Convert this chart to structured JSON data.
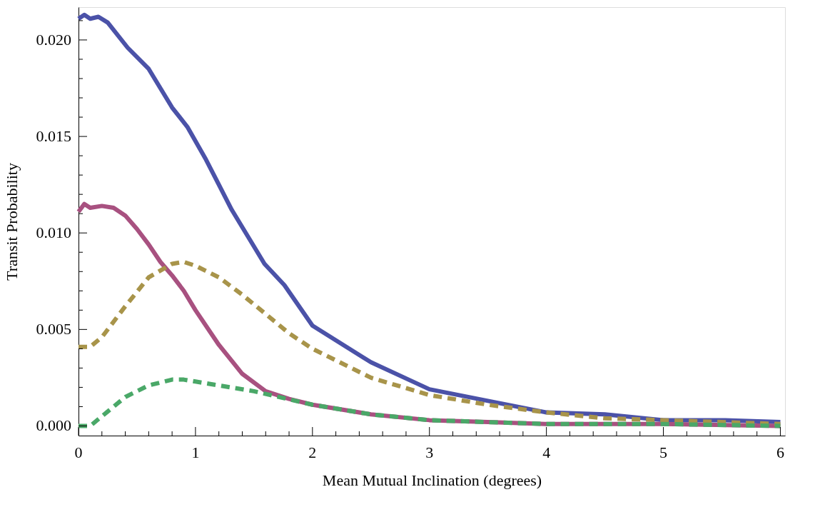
{
  "chart_data": {
    "type": "line",
    "xlabel": "Mean Mutual Inclination (degrees)",
    "ylabel": "Transit Probability",
    "xlim": [
      0,
      6.04
    ],
    "ylim": [
      -0.0005,
      0.0217
    ],
    "xticks": [
      0,
      {
        "value": 0.2,
        "label": null
      },
      {
        "value": 0.4,
        "label": null
      },
      {
        "value": 0.6,
        "label": null
      },
      {
        "value": 0.8,
        "label": null
      },
      1,
      {
        "value": 1.2,
        "label": null
      },
      {
        "value": 1.4,
        "label": null
      },
      {
        "value": 1.6,
        "label": null
      },
      {
        "value": 1.8,
        "label": null
      },
      2,
      {
        "value": 2.2,
        "label": null
      },
      {
        "value": 2.4,
        "label": null
      },
      {
        "value": 2.6,
        "label": null
      },
      {
        "value": 2.8,
        "label": null
      },
      3,
      {
        "value": 3.2,
        "label": null
      },
      {
        "value": 3.4,
        "label": null
      },
      {
        "value": 3.6,
        "label": null
      },
      {
        "value": 3.8,
        "label": null
      },
      4,
      {
        "value": 4.2,
        "label": null
      },
      {
        "value": 4.4,
        "label": null
      },
      {
        "value": 4.6,
        "label": null
      },
      {
        "value": 4.8,
        "label": null
      },
      5,
      {
        "value": 5.2,
        "label": null
      },
      {
        "value": 5.4,
        "label": null
      },
      {
        "value": 5.6,
        "label": null
      },
      {
        "value": 5.8,
        "label": null
      },
      6
    ],
    "yticks": [
      {
        "value": 0,
        "label": "0.000"
      },
      {
        "value": 0.001,
        "label": null
      },
      {
        "value": 0.002,
        "label": null
      },
      {
        "value": 0.003,
        "label": null
      },
      {
        "value": 0.004,
        "label": null
      },
      {
        "value": 0.005,
        "label": "0.005"
      },
      {
        "value": 0.006,
        "label": null
      },
      {
        "value": 0.007,
        "label": null
      },
      {
        "value": 0.008,
        "label": null
      },
      {
        "value": 0.009,
        "label": null
      },
      {
        "value": 0.01,
        "label": "0.010"
      },
      {
        "value": 0.011,
        "label": null
      },
      {
        "value": 0.012,
        "label": null
      },
      {
        "value": 0.013,
        "label": null
      },
      {
        "value": 0.014,
        "label": null
      },
      {
        "value": 0.015,
        "label": "0.015"
      },
      {
        "value": 0.016,
        "label": null
      },
      {
        "value": 0.017,
        "label": null
      },
      {
        "value": 0.018,
        "label": null
      },
      {
        "value": 0.019,
        "label": null
      },
      {
        "value": 0.02,
        "label": "0.020"
      },
      {
        "value": 0.021,
        "label": null
      }
    ],
    "grid": false,
    "marker": "none",
    "series": [
      {
        "color": "#4b52a8",
        "line_style": "solid",
        "x": [
          0,
          0.05,
          0.1,
          0.17,
          0.25,
          0.42,
          0.6,
          0.8,
          0.93,
          1.09,
          1.31,
          1.59,
          1.76,
          2.0,
          2.5,
          3.0,
          3.5,
          4.0,
          4.5,
          5.0,
          5.5,
          6.0
        ],
        "values": [
          0.0211,
          0.0213,
          0.0211,
          0.0212,
          0.0209,
          0.0196,
          0.0185,
          0.0165,
          0.0155,
          0.0138,
          0.0112,
          0.0084,
          0.0073,
          0.0052,
          0.0033,
          0.0019,
          0.0013,
          0.0007,
          0.0006,
          0.0003,
          0.0003,
          0.0002
        ]
      },
      {
        "color": "#a85180",
        "line_style": "solid",
        "x": [
          0,
          0.05,
          0.1,
          0.2,
          0.3,
          0.4,
          0.5,
          0.6,
          0.7,
          0.8,
          0.9,
          1.0,
          1.2,
          1.4,
          1.6,
          1.8,
          2.0,
          2.5,
          3.0,
          3.5,
          4.0,
          5.0,
          6.0
        ],
        "values": [
          0.0111,
          0.0115,
          0.0113,
          0.0114,
          0.0113,
          0.0109,
          0.0102,
          0.0094,
          0.0085,
          0.0078,
          0.007,
          0.006,
          0.0042,
          0.0027,
          0.0018,
          0.0014,
          0.0011,
          0.0006,
          0.0003,
          0.0002,
          0.0001,
          0.0001,
          0.0
        ]
      },
      {
        "color": "#a8944a",
        "line_style": "dashed",
        "x": [
          0,
          0.1,
          0.2,
          0.4,
          0.6,
          0.8,
          0.9,
          1.0,
          1.2,
          1.4,
          1.6,
          1.8,
          2.0,
          2.5,
          3.0,
          3.5,
          4.0,
          4.5,
          5.0,
          5.5,
          6.0
        ],
        "values": [
          0.0041,
          0.0041,
          0.0046,
          0.0062,
          0.0077,
          0.0084,
          0.0085,
          0.0083,
          0.0077,
          0.0068,
          0.0058,
          0.0048,
          0.004,
          0.0025,
          0.0016,
          0.0011,
          0.0007,
          0.0004,
          0.0003,
          0.0002,
          0.0001
        ]
      },
      {
        "color": "#4aa868",
        "line_style": "dashed",
        "x": [
          0,
          0.1,
          0.2,
          0.4,
          0.6,
          0.8,
          0.9,
          1.0,
          1.5,
          2.0,
          2.5,
          3.0,
          3.5,
          4.0,
          5.0,
          6.0
        ],
        "values": [
          0.0,
          0.0,
          0.0005,
          0.0015,
          0.0021,
          0.0024,
          0.0024,
          0.0023,
          0.0018,
          0.0011,
          0.0006,
          0.0003,
          0.0002,
          0.0001,
          0.0001,
          0.0
        ]
      }
    ]
  }
}
